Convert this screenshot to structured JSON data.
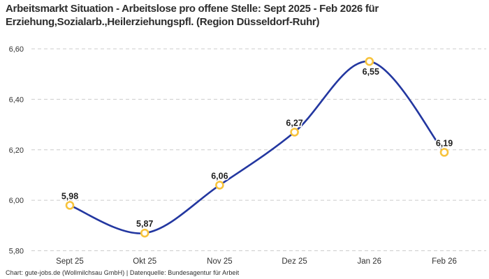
{
  "title": {
    "text": "Arbeitsmarkt Situation - Arbeitslose pro offene Stelle: Sept 2025 - Feb 2026 für Erziehung,Sozialarb.,Heilerziehungspfl. (Region Düsseldorf-Ruhr)",
    "lines": [
      "Arbeitsmarkt Situation - Arbeitslose pro offene Stelle: Sept 2025 - Feb 2026 für",
      "Erziehung,Sozialarb.,Heilerziehungspfl. (Region Düsseldorf-Ruhr)"
    ]
  },
  "footer": {
    "text": "Chart: gute-jobs.de (Wollmilchsau GmbH) | Datenquelle: Bundesagentur für Arbeit"
  },
  "chart_data": {
    "type": "line",
    "title": "Arbeitsmarkt Situation - Arbeitslose pro offene Stelle: Sept 2025 - Feb 2026 für Erziehung,Sozialarb.,Heilerziehungspfl. (Region Düsseldorf-Ruhr)",
    "xlabel": "",
    "ylabel": "",
    "categories": [
      "Sept 25",
      "Okt 25",
      "Nov 25",
      "Dez 25",
      "Jan 26",
      "Feb 26"
    ],
    "values": [
      5.98,
      5.87,
      6.06,
      6.27,
      6.55,
      6.19
    ],
    "value_labels": [
      "5,98",
      "5,87",
      "6,06",
      "6,27",
      "6,55",
      "6,19"
    ],
    "label_positions": [
      "above",
      "above",
      "above",
      "above",
      "below",
      "above"
    ],
    "ylim": [
      5.8,
      6.6
    ],
    "y_ticks": [
      {
        "value": 6.6,
        "label": "6,60"
      },
      {
        "value": 6.4,
        "label": "6,40"
      },
      {
        "value": 6.2,
        "label": "6,20"
      },
      {
        "value": 6.0,
        "label": "6,00"
      },
      {
        "value": 5.8,
        "label": "5,80"
      }
    ],
    "grid": "horizontal-dashed",
    "legend": "none",
    "line_style": "smooth",
    "colors": {
      "line": "#2337a0",
      "marker_stroke": "#f7c33c",
      "marker_fill": "#ffffff",
      "grid": "#cccccc",
      "axis_text": "#333333",
      "value_label": "#1f1f1f",
      "title": "#2d2d2d"
    }
  }
}
